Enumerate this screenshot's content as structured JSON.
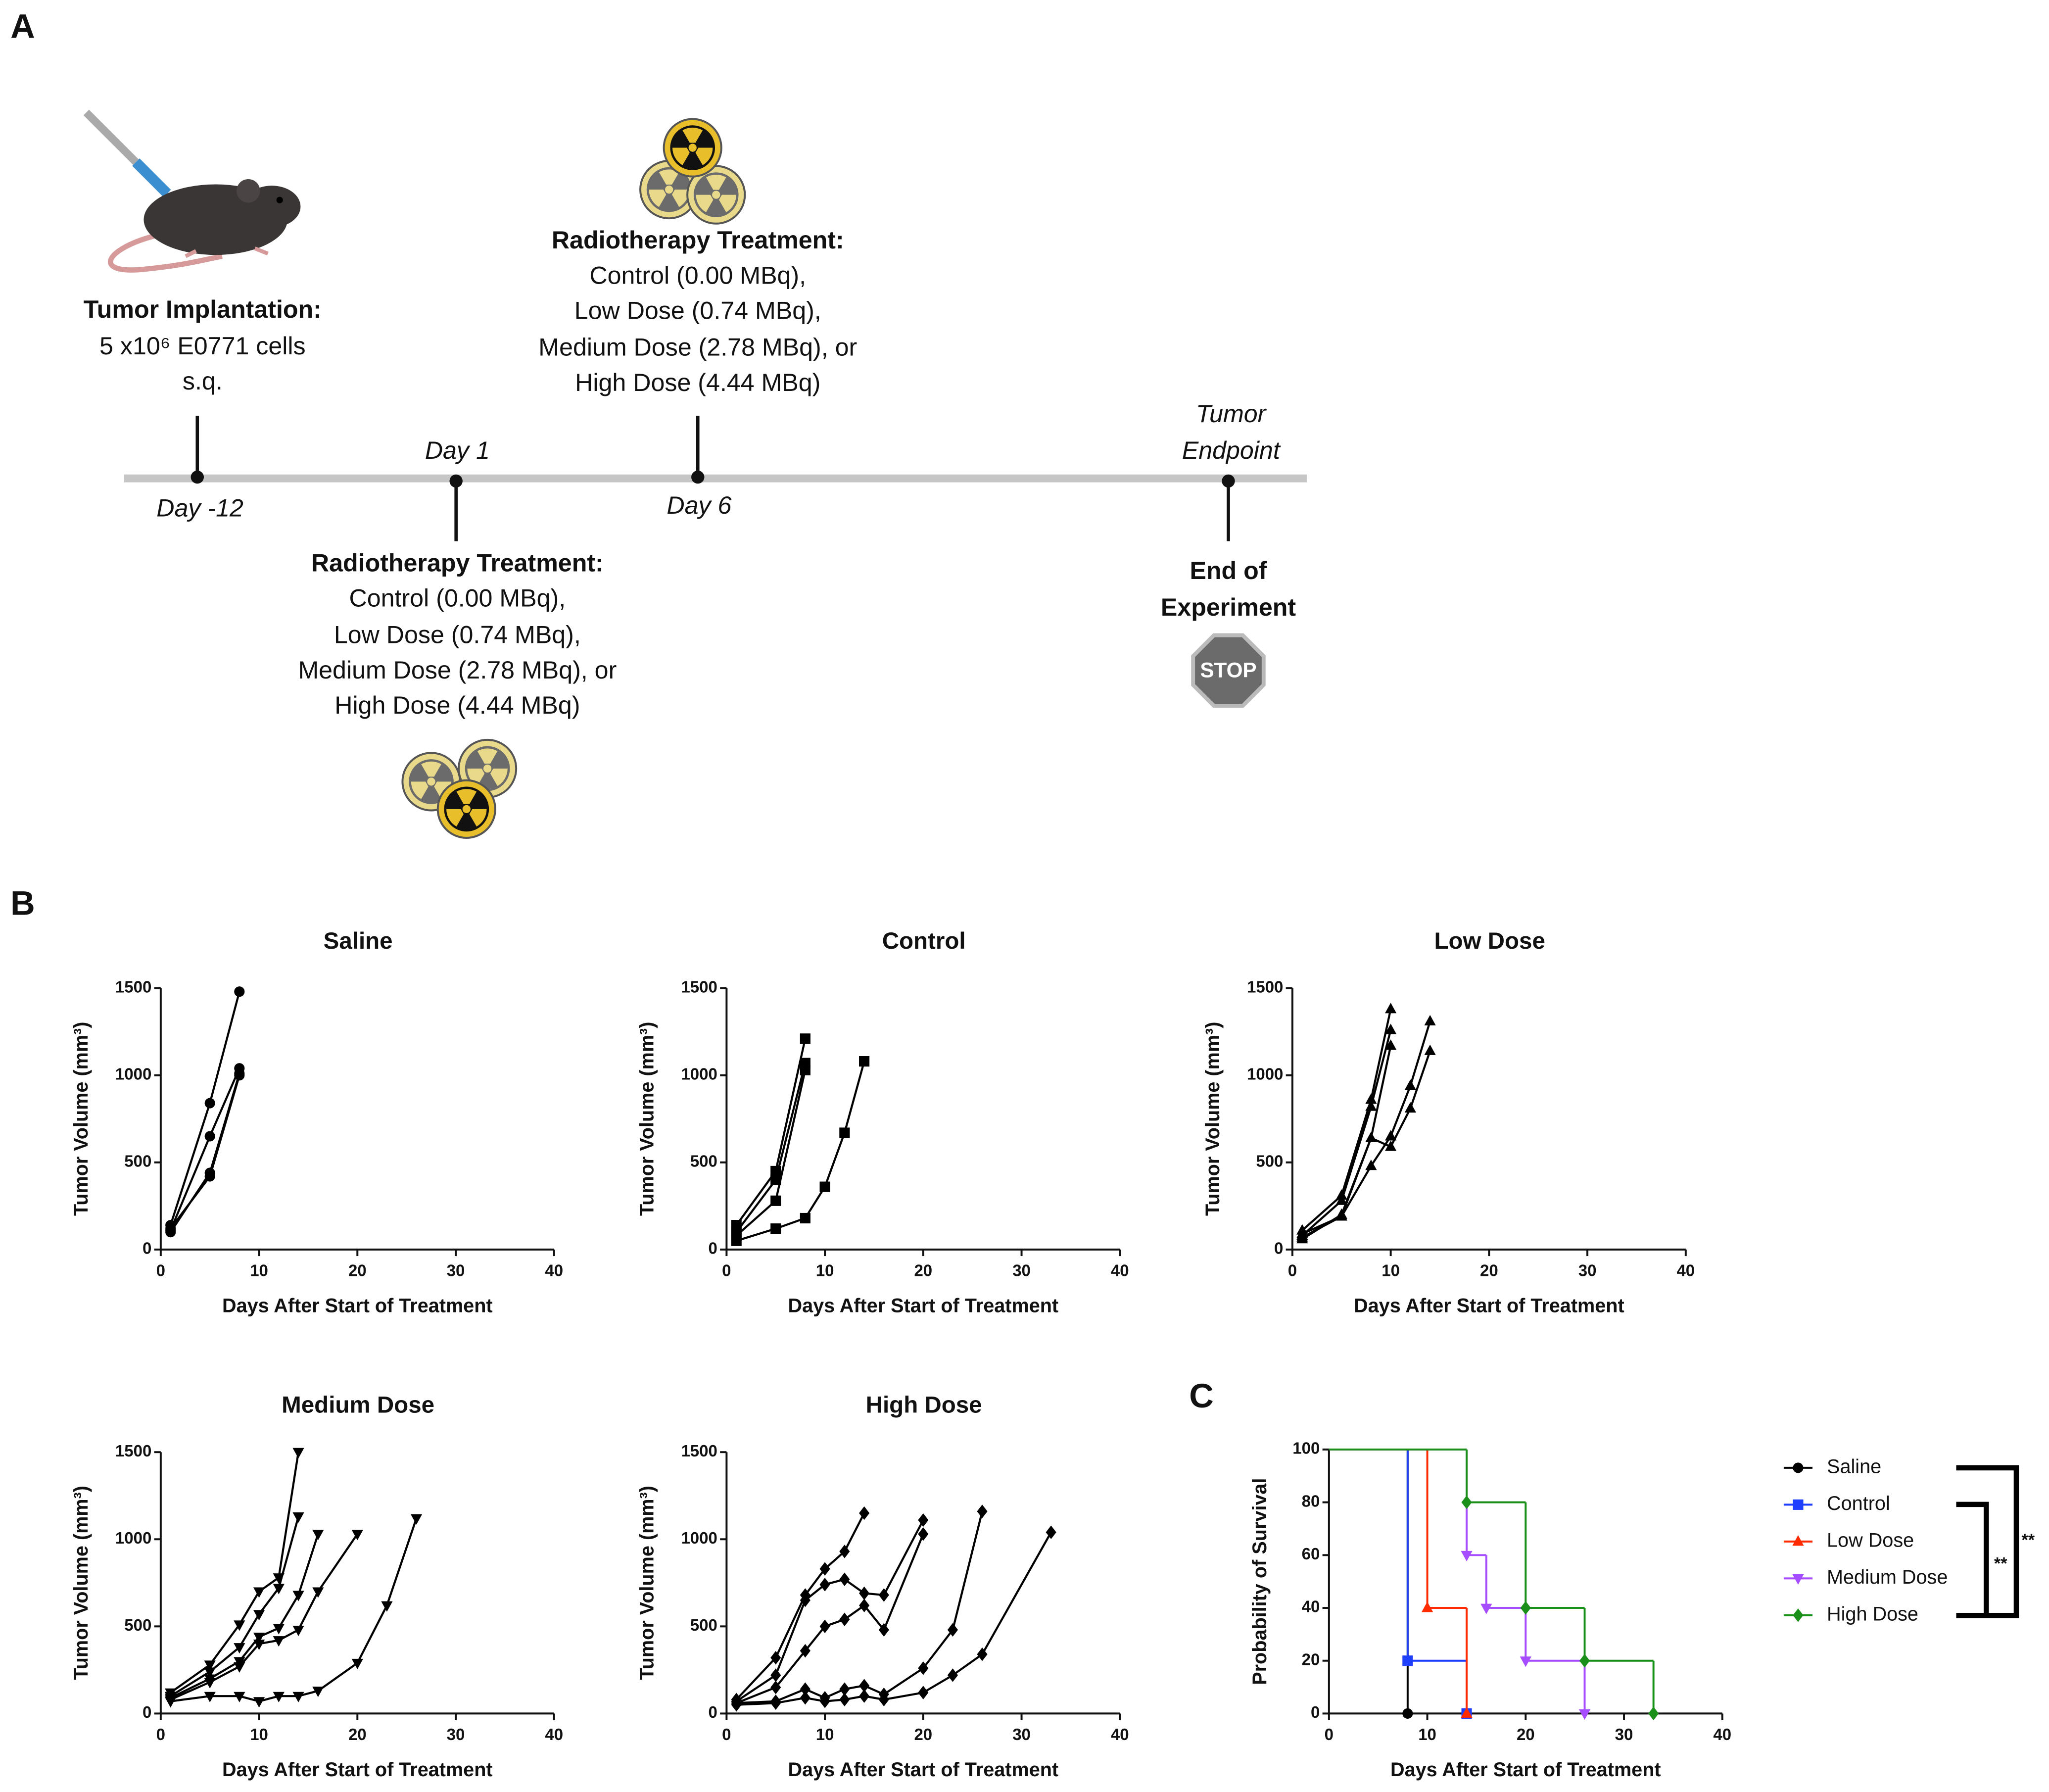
{
  "panel_a": {
    "label": "A",
    "implantation": {
      "title": "Tumor Implantation:",
      "lines": [
        "5 x10⁶ E0771 cells",
        "s.q."
      ]
    },
    "timeline": [
      "Day -12",
      "Day 1",
      "Day 6",
      [
        "Tumor",
        "Endpoint"
      ]
    ],
    "treatment_day6": {
      "title": "Radiotherapy Treatment:",
      "lines": [
        "Control (0.00 MBq),",
        "Low Dose (0.74 MBq),",
        "Medium Dose (2.78 MBq), or",
        "High Dose (4.44 MBq)"
      ]
    },
    "treatment_day1": {
      "title": "Radiotherapy Treatment:",
      "lines": [
        "Control (0.00 MBq),",
        "Low Dose (0.74 MBq),",
        "Medium Dose (2.78 MBq), or",
        "High Dose (4.44 MBq)"
      ]
    },
    "end": {
      "lines": [
        "End of",
        "Experiment"
      ],
      "sign": "STOP"
    }
  },
  "panel_b_label": "B",
  "panel_c_label": "C",
  "chart_data": [
    {
      "type": "line",
      "title": "Saline",
      "x_label": "Days After Start of Treatment",
      "y_label": "Tumor Volume (mm³)",
      "marker": "circle",
      "color": "#000000",
      "xlim": [
        0,
        40
      ],
      "xticks": [
        0,
        10,
        20,
        30,
        40
      ],
      "ylim": [
        0,
        1500
      ],
      "yticks": [
        0,
        500,
        1000,
        1500
      ],
      "series": [
        {
          "x": [
            1,
            5,
            8
          ],
          "values": [
            140,
            840,
            1480
          ]
        },
        {
          "x": [
            1,
            5,
            8
          ],
          "values": [
            110,
            650,
            1040
          ]
        },
        {
          "x": [
            1,
            5,
            8
          ],
          "values": [
            100,
            440,
            1010
          ]
        },
        {
          "x": [
            1,
            5,
            8
          ],
          "values": [
            120,
            420,
            1000
          ]
        }
      ]
    },
    {
      "type": "line",
      "title": "Control",
      "x_label": "Days After Start of Treatment",
      "y_label": "Tumor Volume (mm³)",
      "marker": "square",
      "color": "#000000",
      "xlim": [
        0,
        40
      ],
      "xticks": [
        0,
        10,
        20,
        30,
        40
      ],
      "ylim": [
        0,
        1500
      ],
      "yticks": [
        0,
        500,
        1000,
        1500
      ],
      "series": [
        {
          "x": [
            1,
            5,
            8
          ],
          "values": [
            140,
            450,
            1210
          ]
        },
        {
          "x": [
            1,
            5,
            8
          ],
          "values": [
            100,
            400,
            1070
          ]
        },
        {
          "x": [
            1,
            5,
            8
          ],
          "values": [
            80,
            280,
            1030
          ]
        },
        {
          "x": [
            1,
            5,
            8,
            10,
            12,
            14
          ],
          "values": [
            50,
            120,
            180,
            360,
            670,
            1080
          ]
        }
      ]
    },
    {
      "type": "line",
      "title": "Low Dose",
      "x_label": "Days After Start of Treatment",
      "y_label": "Tumor Volume (mm³)",
      "marker": "triangle-up",
      "color": "#000000",
      "xlim": [
        0,
        40
      ],
      "xticks": [
        0,
        10,
        20,
        30,
        40
      ],
      "ylim": [
        0,
        1500
      ],
      "yticks": [
        0,
        500,
        1000,
        1500
      ],
      "series": [
        {
          "x": [
            1,
            5,
            8,
            10
          ],
          "values": [
            110,
            310,
            860,
            1380
          ]
        },
        {
          "x": [
            1,
            5,
            8,
            10
          ],
          "values": [
            80,
            280,
            820,
            1260
          ]
        },
        {
          "x": [
            1,
            5,
            8,
            10
          ],
          "values": [
            60,
            200,
            640,
            1170
          ]
        },
        {
          "x": [
            1,
            5,
            8,
            10,
            12,
            14
          ],
          "values": [
            90,
            190,
            480,
            650,
            940,
            1310
          ]
        },
        {
          "x": [
            1,
            5,
            8,
            10,
            12,
            14
          ],
          "values": [
            70,
            190,
            640,
            590,
            810,
            1140
          ]
        }
      ]
    },
    {
      "type": "line",
      "title": "Medium Dose",
      "x_label": "Days After Start of Treatment",
      "y_label": "Tumor Volume (mm³)",
      "marker": "triangle-down",
      "color": "#000000",
      "xlim": [
        0,
        40
      ],
      "xticks": [
        0,
        10,
        20,
        30,
        40
      ],
      "ylim": [
        0,
        1500
      ],
      "yticks": [
        0,
        500,
        1000,
        1500
      ],
      "series": [
        {
          "x": [
            1,
            5,
            8,
            10,
            12,
            14
          ],
          "values": [
            120,
            280,
            510,
            700,
            780,
            1500
          ]
        },
        {
          "x": [
            1,
            5,
            8,
            10,
            12,
            14
          ],
          "values": [
            100,
            240,
            380,
            570,
            720,
            1130
          ]
        },
        {
          "x": [
            1,
            5,
            8,
            10,
            12,
            14,
            16
          ],
          "values": [
            90,
            200,
            300,
            440,
            490,
            680,
            1030
          ]
        },
        {
          "x": [
            1,
            5,
            8,
            10,
            12,
            14,
            16,
            20
          ],
          "values": [
            80,
            180,
            270,
            400,
            420,
            480,
            700,
            1030
          ]
        },
        {
          "x": [
            1,
            5,
            8,
            10,
            12,
            14,
            16,
            20,
            23,
            26
          ],
          "values": [
            70,
            100,
            100,
            70,
            100,
            100,
            130,
            290,
            620,
            1120
          ]
        }
      ]
    },
    {
      "type": "line",
      "title": "High Dose",
      "x_label": "Days After Start of Treatment",
      "y_label": "Tumor Volume (mm³)",
      "marker": "diamond",
      "color": "#000000",
      "xlim": [
        0,
        40
      ],
      "xticks": [
        0,
        10,
        20,
        30,
        40
      ],
      "ylim": [
        0,
        1500
      ],
      "yticks": [
        0,
        500,
        1000,
        1500
      ],
      "series": [
        {
          "x": [
            1,
            5,
            8,
            10,
            12,
            14
          ],
          "values": [
            80,
            320,
            680,
            830,
            930,
            1150
          ]
        },
        {
          "x": [
            1,
            5,
            8,
            10,
            12,
            14,
            16,
            20
          ],
          "values": [
            70,
            220,
            650,
            740,
            770,
            690,
            680,
            1110
          ]
        },
        {
          "x": [
            1,
            5,
            8,
            10,
            12,
            14,
            16,
            20
          ],
          "values": [
            60,
            150,
            360,
            500,
            540,
            620,
            480,
            1030
          ]
        },
        {
          "x": [
            1,
            5,
            8,
            10,
            12,
            14,
            16,
            20,
            23,
            26
          ],
          "values": [
            60,
            70,
            140,
            90,
            140,
            160,
            110,
            260,
            480,
            1160
          ]
        },
        {
          "x": [
            1,
            5,
            8,
            10,
            12,
            14,
            16,
            20,
            23,
            26,
            33
          ],
          "values": [
            50,
            60,
            90,
            70,
            80,
            100,
            80,
            120,
            220,
            340,
            1040
          ]
        }
      ]
    },
    {
      "type": "step",
      "x_label": "Days After Start of Treatment",
      "y_label": "Probability of Survival",
      "legend": "right",
      "xlim": [
        0,
        40
      ],
      "xticks": [
        0,
        10,
        20,
        30,
        40
      ],
      "ylim": [
        0,
        100
      ],
      "yticks": [
        0,
        20,
        40,
        60,
        80,
        100
      ],
      "annotations": [
        "**",
        "**"
      ],
      "series": [
        {
          "name": "Saline",
          "color": "#000000",
          "marker": "circle",
          "x": [
            0,
            8
          ],
          "values": [
            100,
            0
          ]
        },
        {
          "name": "Control",
          "color": "#1f3fff",
          "marker": "square",
          "x": [
            0,
            8,
            14
          ],
          "values": [
            100,
            20,
            0
          ]
        },
        {
          "name": "Low Dose",
          "color": "#ff2a00",
          "marker": "triangle-up",
          "x": [
            0,
            10,
            14
          ],
          "values": [
            100,
            40,
            0
          ]
        },
        {
          "name": "Medium Dose",
          "color": "#a64dff",
          "marker": "triangle-down",
          "x": [
            0,
            14,
            16,
            20,
            26
          ],
          "values": [
            100,
            60,
            40,
            20,
            0
          ]
        },
        {
          "name": "High Dose",
          "color": "#1a8f1a",
          "marker": "diamond",
          "x": [
            0,
            14,
            20,
            26,
            33
          ],
          "values": [
            100,
            80,
            40,
            20,
            0
          ]
        }
      ]
    }
  ]
}
